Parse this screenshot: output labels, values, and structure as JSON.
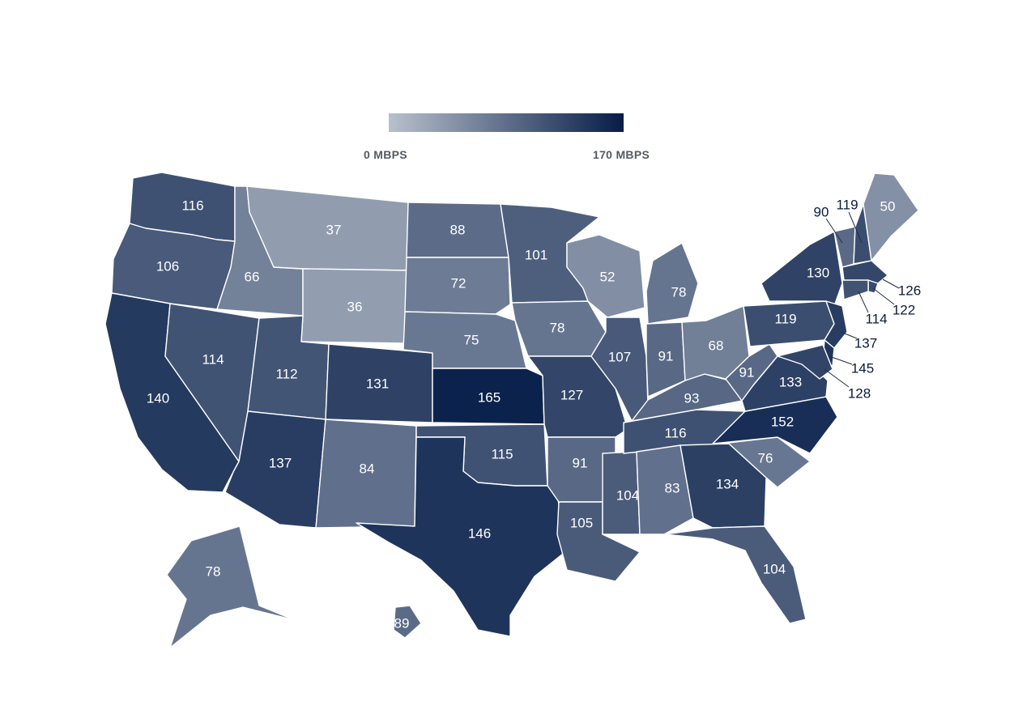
{
  "legend": {
    "min_label": "0 MBPS",
    "max_label": "170 MBPS",
    "min_value": 0,
    "max_value": 170,
    "color_low": "#b8c0cc",
    "color_high": "#061d48"
  },
  "states": [
    {
      "code": "WA",
      "value": 116
    },
    {
      "code": "OR",
      "value": 106
    },
    {
      "code": "CA",
      "value": 140
    },
    {
      "code": "ID",
      "value": 66
    },
    {
      "code": "NV",
      "value": 114
    },
    {
      "code": "MT",
      "value": 37
    },
    {
      "code": "WY",
      "value": 36
    },
    {
      "code": "UT",
      "value": 112
    },
    {
      "code": "AZ",
      "value": 137
    },
    {
      "code": "CO",
      "value": 131
    },
    {
      "code": "NM",
      "value": 84
    },
    {
      "code": "ND",
      "value": 88
    },
    {
      "code": "SD",
      "value": 72
    },
    {
      "code": "NE",
      "value": 75
    },
    {
      "code": "KS",
      "value": 165
    },
    {
      "code": "OK",
      "value": 115
    },
    {
      "code": "TX",
      "value": 146
    },
    {
      "code": "MN",
      "value": 101
    },
    {
      "code": "IA",
      "value": 78
    },
    {
      "code": "MO",
      "value": 127
    },
    {
      "code": "AR",
      "value": 91
    },
    {
      "code": "LA",
      "value": 105
    },
    {
      "code": "WI",
      "value": 52
    },
    {
      "code": "IL",
      "value": 107
    },
    {
      "code": "MS",
      "value": 104
    },
    {
      "code": "MI",
      "value": 78
    },
    {
      "code": "IN",
      "value": 91
    },
    {
      "code": "KY",
      "value": 93
    },
    {
      "code": "TN",
      "value": 116
    },
    {
      "code": "AL",
      "value": 83
    },
    {
      "code": "GA",
      "value": 134
    },
    {
      "code": "FL",
      "value": 104
    },
    {
      "code": "SC",
      "value": 76
    },
    {
      "code": "NC",
      "value": 152
    },
    {
      "code": "OH",
      "value": 68
    },
    {
      "code": "WV",
      "value": 91
    },
    {
      "code": "VA",
      "value": 133
    },
    {
      "code": "PA",
      "value": 119
    },
    {
      "code": "NY",
      "value": 130
    },
    {
      "code": "VT",
      "value": 90
    },
    {
      "code": "NH",
      "value": 119
    },
    {
      "code": "ME",
      "value": 50
    },
    {
      "code": "MA",
      "value": 126
    },
    {
      "code": "RI",
      "value": 122
    },
    {
      "code": "CT",
      "value": 114
    },
    {
      "code": "NJ",
      "value": 137
    },
    {
      "code": "DE",
      "value": 145
    },
    {
      "code": "MD",
      "value": 128
    },
    {
      "code": "AK",
      "value": 78
    },
    {
      "code": "HI",
      "value": 89
    }
  ]
}
